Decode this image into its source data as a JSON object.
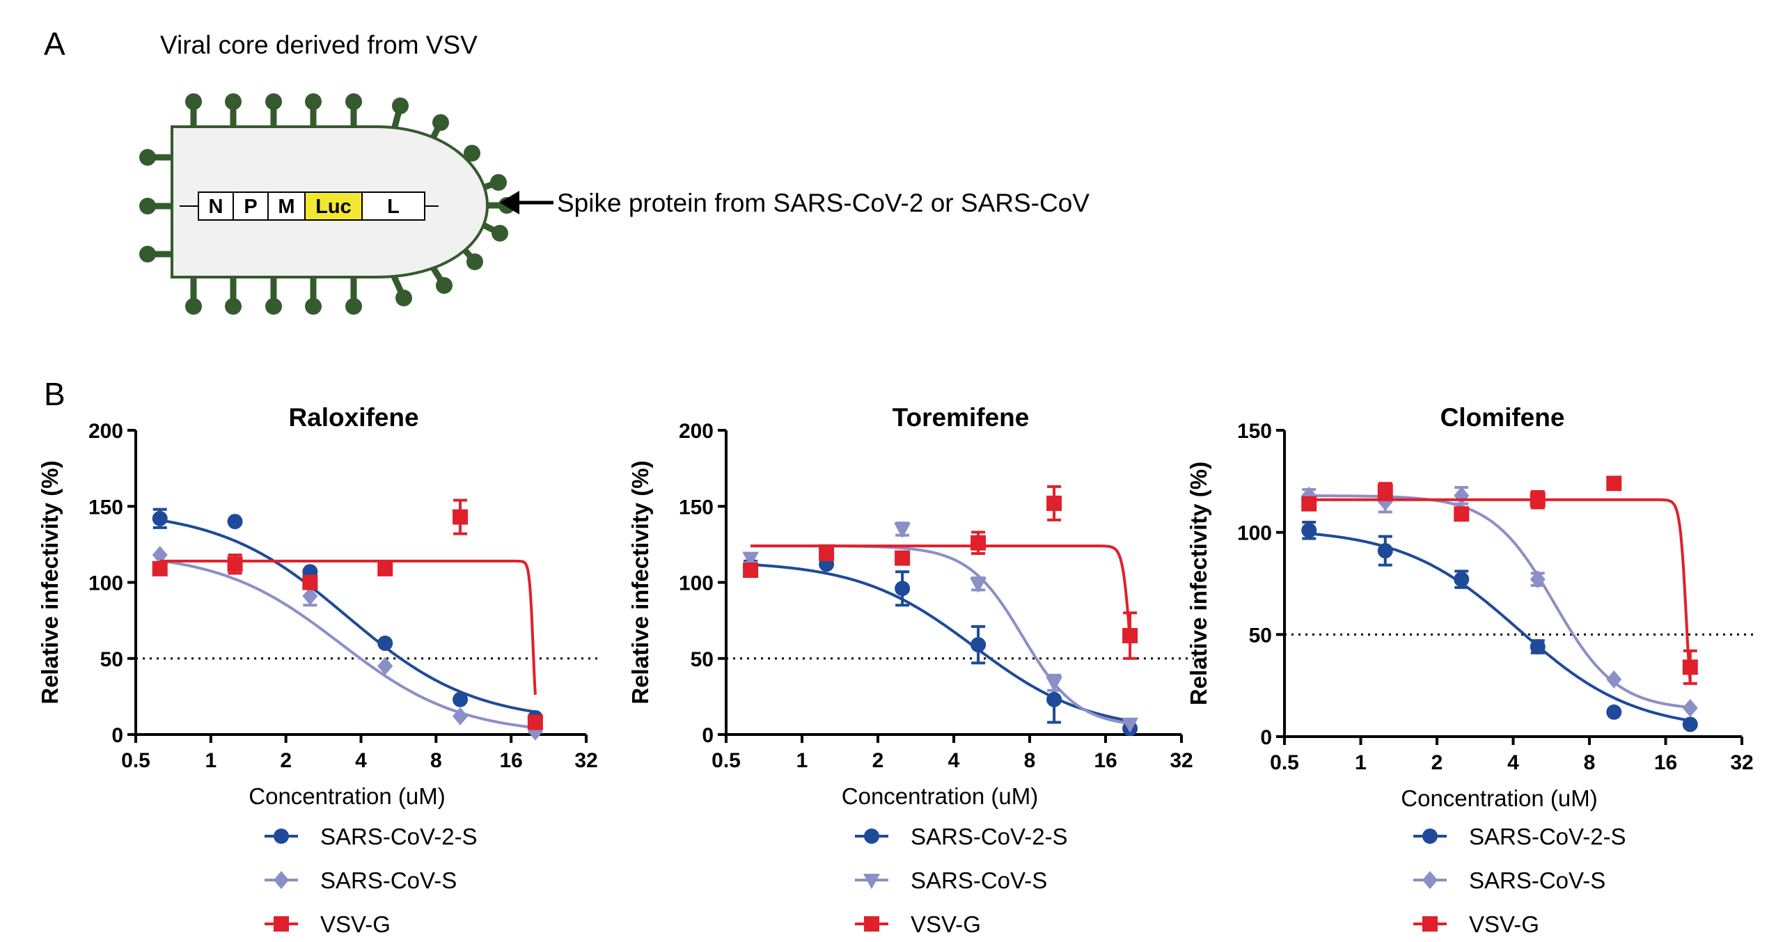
{
  "panel_a": {
    "label": "A",
    "title": "Viral core derived from VSV",
    "genes": [
      "N",
      "P",
      "M",
      "Luc",
      "L"
    ],
    "arrow_label": "Spike protein from SARS-CoV-2 or SARS-CoV",
    "colors": {
      "spike": "#355a2e",
      "luc": "#f2e832"
    }
  },
  "panel_b": {
    "label": "B"
  },
  "chart_data": [
    {
      "type": "scatter",
      "title": "Raloxifene",
      "xlabel": "Concentration (uM)",
      "ylabel": "Relative infectivity (%)",
      "x_scale": "log2",
      "xlim": [
        0.5,
        32
      ],
      "xticks": [
        "0.5",
        "1",
        "2",
        "4",
        "8",
        "16",
        "32"
      ],
      "xtick_values": [
        0.5,
        1,
        2,
        4,
        8,
        16,
        32
      ],
      "ylim": [
        0,
        200
      ],
      "yticks": [
        0,
        50,
        100,
        150,
        200
      ],
      "reference_line": 50,
      "legend": "below",
      "series": [
        {
          "name": "SARS-CoV-2-S",
          "color": "#1f4a99",
          "marker": "circle",
          "x": [
            0.625,
            1.25,
            2.5,
            5,
            10,
            20
          ],
          "y": [
            142,
            140,
            107,
            60,
            23,
            11
          ],
          "err": [
            6,
            2,
            2,
            2,
            2,
            2
          ],
          "fit": {
            "top": 148,
            "bottom": 8,
            "ic50": 3.5,
            "hill": 1.7
          }
        },
        {
          "name": "SARS-CoV-S",
          "color": "#8b8fc7",
          "marker": "diamond",
          "x": [
            0.625,
            1.25,
            2.5,
            5,
            10,
            20
          ],
          "y": [
            118,
            112,
            91,
            45,
            12,
            2
          ],
          "err": [
            2,
            4,
            6,
            2,
            2,
            2
          ],
          "fit": {
            "top": 120,
            "bottom": 0,
            "ic50": 3.3,
            "hill": 1.8
          }
        },
        {
          "name": "VSV-G",
          "color": "#e0202a",
          "marker": "square",
          "x": [
            0.625,
            1.25,
            2.5,
            5,
            10,
            20
          ],
          "y": [
            109,
            112,
            100,
            109,
            143,
            8
          ],
          "err": [
            2,
            6,
            2,
            2,
            11,
            2
          ],
          "fit": {
            "top": 114,
            "bottom": 0,
            "ic50": 19.6,
            "hill": 60
          }
        }
      ]
    },
    {
      "type": "scatter",
      "title": "Toremifene",
      "xlabel": "Concentration (uM)",
      "ylabel": "Relative infectivity (%)",
      "x_scale": "log2",
      "xlim": [
        0.5,
        32
      ],
      "xticks": [
        "0.5",
        "1",
        "2",
        "4",
        "8",
        "16",
        "32"
      ],
      "xtick_values": [
        0.5,
        1,
        2,
        4,
        8,
        16,
        32
      ],
      "ylim": [
        0,
        200
      ],
      "yticks": [
        0,
        50,
        100,
        150,
        200
      ],
      "reference_line": 50,
      "legend": "below",
      "series": [
        {
          "name": "SARS-CoV-2-S",
          "color": "#1f4a99",
          "marker": "circle",
          "x": [
            0.625,
            1.25,
            2.5,
            5,
            10,
            20
          ],
          "y": [
            110,
            112,
            96,
            59,
            23,
            4
          ],
          "err": [
            4,
            2,
            11,
            12,
            15,
            2
          ],
          "fit": {
            "top": 114,
            "bottom": 2,
            "ic50": 4.8,
            "hill": 1.9
          }
        },
        {
          "name": "SARS-CoV-S",
          "color": "#8b8fc7",
          "marker": "triangle-down",
          "x": [
            0.625,
            1.25,
            2.5,
            5,
            10,
            20
          ],
          "y": [
            116,
            121,
            135,
            99,
            34,
            7
          ],
          "err": [
            3,
            2,
            4,
            4,
            5,
            2
          ],
          "fit": {
            "top": 124,
            "bottom": 5,
            "ic50": 7.5,
            "hill": 4
          }
        },
        {
          "name": "VSV-G",
          "color": "#e0202a",
          "marker": "square",
          "x": [
            0.625,
            1.25,
            2.5,
            5,
            10,
            20
          ],
          "y": [
            108,
            119,
            116,
            126,
            152,
            65
          ],
          "err": [
            3,
            2,
            2,
            7,
            11,
            15
          ],
          "fit": {
            "top": 124,
            "bottom": 0,
            "ic50": 20,
            "hill": 30
          }
        }
      ]
    },
    {
      "type": "scatter",
      "title": "Clomifene",
      "xlabel": "Concentration (uM)",
      "ylabel": "Relative infectivity (%)",
      "x_scale": "log2",
      "xlim": [
        0.5,
        32
      ],
      "xticks": [
        "0.5",
        "1",
        "2",
        "4",
        "8",
        "16",
        "32"
      ],
      "xtick_values": [
        0.5,
        1,
        2,
        4,
        8,
        16,
        32
      ],
      "ylim": [
        0,
        150
      ],
      "yticks": [
        0,
        50,
        100,
        150
      ],
      "reference_line": 50,
      "legend": "below",
      "series": [
        {
          "name": "SARS-CoV-2-S",
          "color": "#1f4a99",
          "marker": "circle",
          "x": [
            0.625,
            1.25,
            2.5,
            5,
            10,
            20
          ],
          "y": [
            101,
            91,
            77,
            44,
            12,
            6
          ],
          "err": [
            4,
            7,
            4,
            3,
            1,
            1
          ],
          "fit": {
            "top": 102,
            "bottom": 3,
            "ic50": 4.2,
            "hill": 1.9
          }
        },
        {
          "name": "SARS-CoV-S",
          "color": "#8b8fc7",
          "marker": "diamond",
          "x": [
            0.625,
            1.25,
            2.5,
            5,
            10,
            20
          ],
          "y": [
            118,
            115,
            118,
            77,
            28,
            14
          ],
          "err": [
            3,
            5,
            4,
            3,
            1,
            1
          ],
          "fit": {
            "top": 118,
            "bottom": 13,
            "ic50": 5.8,
            "hill": 3.5
          }
        },
        {
          "name": "VSV-G",
          "color": "#e0202a",
          "marker": "square",
          "x": [
            0.625,
            1.25,
            2.5,
            5,
            10,
            20
          ],
          "y": [
            114,
            120,
            109,
            116,
            124,
            34
          ],
          "err": [
            2,
            4,
            1,
            4,
            1,
            8
          ],
          "fit": {
            "top": 116,
            "bottom": 0,
            "ic50": 19.3,
            "hill": 35
          }
        }
      ]
    }
  ]
}
